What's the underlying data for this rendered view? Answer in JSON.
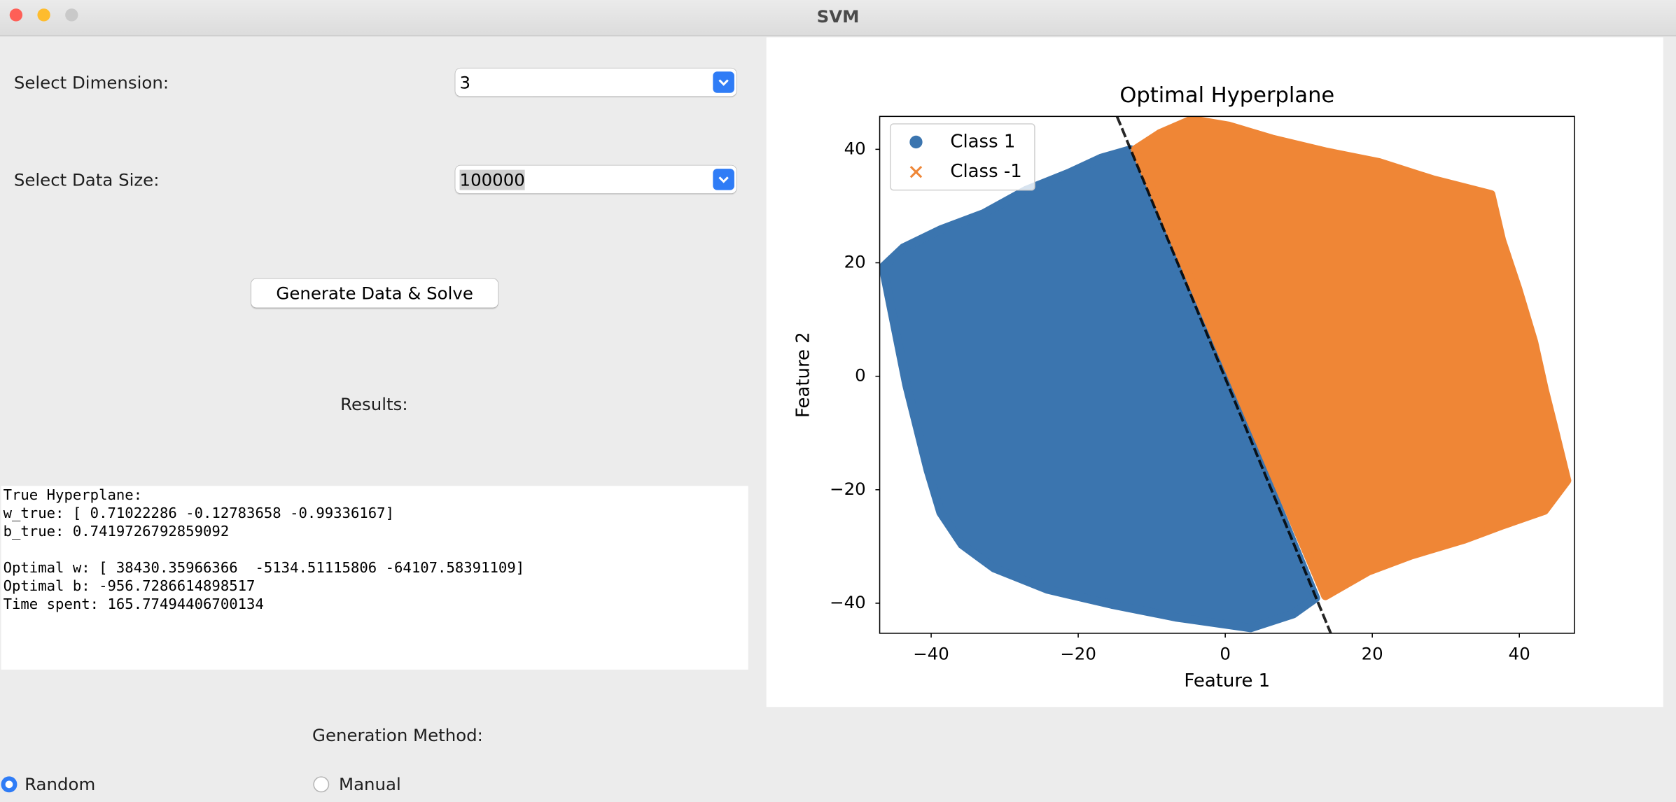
{
  "window": {
    "title": "SVM"
  },
  "form": {
    "dimension_label": "Select Dimension:",
    "dimension_value": "3",
    "size_label": "Select Data Size:",
    "size_value": "100000",
    "button": "Generate Data & Solve",
    "results_label": "Results:",
    "results_text": [
      "True Hyperplane:",
      "w_true: [ 0.71022286 -0.12783658 -0.99336167]",
      "b_true: 0.7419726792859092",
      "Optimal w: [ 38430.35966366  -5134.51115806 -64107.58391109]",
      "Optimal b: -956.7286614898517",
      "Time spent: 165.77494406700134"
    ],
    "method_label": "Generation Method:",
    "methods": [
      "Random",
      "Manual"
    ]
  },
  "chart_data": {
    "type": "scatter",
    "title": "Optimal Hyperplane",
    "x_label": "Feature 1",
    "y_label": "Feature 2",
    "xlim": [
      -47,
      47.5
    ],
    "ylim": [
      -45.3,
      45.8
    ],
    "xticks": [
      {
        "value": -40,
        "label": "−40"
      },
      {
        "value": -20,
        "label": "−20"
      },
      0,
      20,
      40
    ],
    "yticks": [
      {
        "value": -40,
        "label": "−40"
      },
      {
        "value": -20,
        "label": "−20"
      },
      0,
      20,
      40
    ],
    "series": [
      {
        "name": "Class 1",
        "color": "#3b75af",
        "marker": "o"
      },
      {
        "name": "Class -1",
        "color": "#ef8636",
        "marker": "x"
      }
    ],
    "legend": "upper left"
  }
}
